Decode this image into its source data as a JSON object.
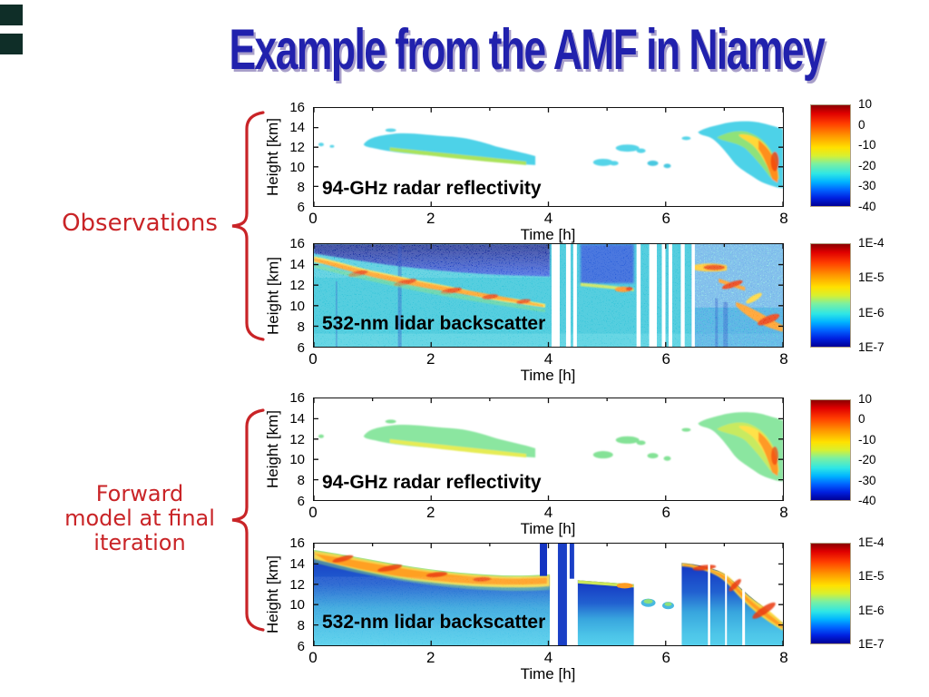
{
  "slide": {
    "title": "Example from the AMF in Niamey",
    "background": "#ffffff"
  },
  "colors": {
    "title_text": "#2121ad",
    "title_shadow": "#a89fca",
    "annotation_red": "#c92427",
    "corner_marker": "#0f2e28",
    "axis": "#111111"
  },
  "annotations": {
    "observations": "Observations",
    "forward_model_lines": [
      "Forward",
      "model at final",
      "iteration"
    ]
  },
  "axes": {
    "xlabel": "Time [h]",
    "ylabel": "Height [km]",
    "xticks": [
      "0",
      "2",
      "4",
      "6",
      "8"
    ],
    "yticks": [
      "16",
      "14",
      "12",
      "10",
      "8",
      "6"
    ]
  },
  "panels": [
    {
      "id": "radar-obs",
      "group": "Observations",
      "label": "94-GHz radar reflectivity",
      "colorbar": {
        "ticks": [
          "10",
          "0",
          "-10",
          "-20",
          "-30",
          "-40"
        ]
      }
    },
    {
      "id": "lidar-obs",
      "group": "Observations",
      "label": "532-nm lidar backscatter",
      "colorbar": {
        "ticks": [
          "1E-4",
          "1E-5",
          "1E-6",
          "1E-7"
        ]
      }
    },
    {
      "id": "radar-fwd",
      "group": "Forward model at final iteration",
      "label": "94-GHz radar reflectivity",
      "colorbar": {
        "ticks": [
          "10",
          "0",
          "-10",
          "-20",
          "-30",
          "-40"
        ]
      }
    },
    {
      "id": "lidar-fwd",
      "group": "Forward model at final iteration",
      "label": "532-nm lidar backscatter",
      "colorbar": {
        "ticks": [
          "1E-4",
          "1E-5",
          "1E-6",
          "1E-7"
        ]
      }
    }
  ],
  "chart_data": [
    {
      "type": "heatmap",
      "title": "94-GHz radar reflectivity (observations)",
      "xlabel": "Time [h]",
      "ylabel": "Height [km]",
      "xlim": [
        0,
        8
      ],
      "ylim": [
        6,
        16
      ],
      "xticks": [
        0,
        2,
        4,
        6,
        8
      ],
      "yticks": [
        6,
        8,
        10,
        12,
        14,
        16
      ],
      "colorbar": {
        "tick_values": [
          10,
          0,
          -10,
          -20,
          -30,
          -40
        ],
        "colormap": "jet",
        "max_at": "top"
      },
      "features": [
        {
          "desc": "descending cirrus band, cyan with green-yellow core",
          "t_range": [
            0.9,
            3.8
          ],
          "z_range": [
            10.1,
            13.5
          ]
        },
        {
          "desc": "scattered small cloud patches",
          "t_range": [
            4.8,
            6.1
          ],
          "z_range": [
            10,
            12.1
          ]
        },
        {
          "desc": "deep cloud with orange-red core descending to 8 km",
          "t_range": [
            6.5,
            8.0
          ],
          "z_range": [
            7.8,
            14.6
          ]
        }
      ]
    },
    {
      "type": "heatmap",
      "title": "532-nm lidar backscatter (observations)",
      "xlabel": "Time [h]",
      "ylabel": "Height [km]",
      "xlim": [
        0,
        8
      ],
      "ylim": [
        6,
        16
      ],
      "xticks": [
        0,
        2,
        4,
        6,
        8
      ],
      "yticks": [
        6,
        8,
        10,
        12,
        14,
        16
      ],
      "colorbar": {
        "tick_values": [
          "1E-4",
          "1E-5",
          "1E-6",
          "1E-7"
        ],
        "colormap": "jet",
        "max_at": "top"
      },
      "features": [
        {
          "desc": "full cyan molecular background with speckle noise",
          "t_range": [
            0,
            8
          ],
          "z_range": [
            6,
            16
          ]
        },
        {
          "desc": "dark-blue attenuated region above cloud top",
          "t_range": [
            0,
            4
          ],
          "z_range": [
            13,
            16
          ]
        },
        {
          "desc": "strong yellow-orange-red backscatter band descending",
          "t_range": [
            0,
            4
          ],
          "z_range": [
            10,
            14.8
          ]
        },
        {
          "desc": "white no-data vertical gaps",
          "t_values": [
            4.1,
            4.3,
            4.45,
            5.5,
            5.78,
            5.96,
            6.28,
            6.45
          ]
        },
        {
          "desc": "orange-red bands descending to 8 km in noisy region",
          "t_range": [
            6.4,
            8.0
          ],
          "z_range": [
            8,
            14.1
          ]
        }
      ]
    },
    {
      "type": "heatmap",
      "title": "94-GHz radar reflectivity (forward model at final iteration)",
      "xlabel": "Time [h]",
      "ylabel": "Height [km]",
      "xlim": [
        0,
        8
      ],
      "ylim": [
        6,
        16
      ],
      "xticks": [
        0,
        2,
        4,
        6,
        8
      ],
      "yticks": [
        6,
        8,
        10,
        12,
        14,
        16
      ],
      "colorbar": {
        "tick_values": [
          10,
          0,
          -10,
          -20,
          -30,
          -40
        ],
        "colormap": "jet",
        "max_at": "top"
      },
      "features": [
        {
          "desc": "smooth green cirrus band with yellow core",
          "t_range": [
            0.9,
            3.8
          ],
          "z_range": [
            10.1,
            13.5
          ]
        },
        {
          "desc": "scattered small green patches",
          "t_range": [
            4.8,
            6.1
          ],
          "z_range": [
            10,
            12.1
          ]
        },
        {
          "desc": "deep cloud with yellow-orange core",
          "t_range": [
            6.5,
            8.0
          ],
          "z_range": [
            7.8,
            14.6
          ]
        }
      ]
    },
    {
      "type": "heatmap",
      "title": "532-nm lidar backscatter (forward model at final iteration)",
      "xlabel": "Time [h]",
      "ylabel": "Height [km]",
      "xlim": [
        0,
        8
      ],
      "ylim": [
        6,
        16
      ],
      "xticks": [
        0,
        2,
        4,
        6,
        8
      ],
      "yticks": [
        6,
        8,
        10,
        12,
        14,
        16
      ],
      "colorbar": {
        "tick_values": [
          "1E-4",
          "1E-5",
          "1E-6",
          "1E-7"
        ],
        "colormap": "jet",
        "max_at": "top"
      },
      "features": [
        {
          "desc": "white clear sky above modeled cloud top",
          "t_range": [
            0,
            8
          ],
          "z_range": [
            13,
            16
          ]
        },
        {
          "desc": "yellow-orange band along descending cloud top, blue attenuated region below",
          "t_range": [
            0,
            4
          ],
          "z_range": [
            6,
            15.3
          ]
        },
        {
          "desc": "mid segment of blue cloud with thin yellow-green top",
          "t_range": [
            4.5,
            5.45
          ],
          "z_range": [
            6,
            12.5
          ]
        },
        {
          "desc": "white no-data vertical gaps",
          "t_values": [
            4.1,
            4.35,
            5.5,
            5.78,
            5.96
          ]
        },
        {
          "desc": "right segment with orange-red band descending to 8 km",
          "t_range": [
            6.3,
            8.0
          ],
          "z_range": [
            6,
            14.2
          ]
        }
      ]
    }
  ]
}
